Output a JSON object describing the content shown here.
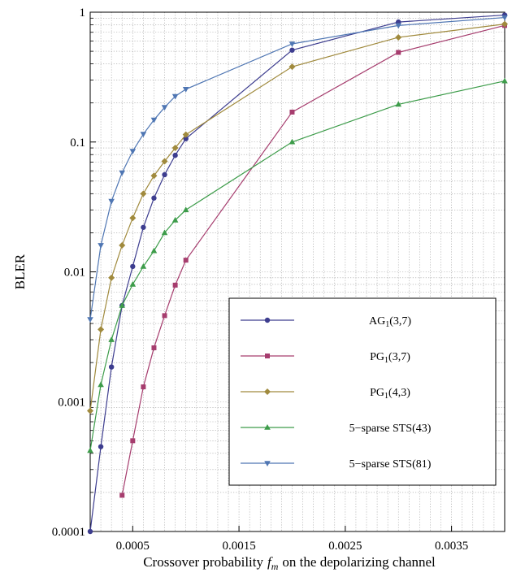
{
  "chart_data": {
    "type": "line",
    "title": "",
    "xlabel": "Crossover probability",
    "xlabel_symbol": "f",
    "xlabel_subscript": "m",
    "xlabel_suffix": "on the depolarizing channel",
    "ylabel": "BLER",
    "xlim": [
      0.0001,
      0.004
    ],
    "ylim": [
      0.0001,
      1
    ],
    "y_scale": "log",
    "grid": true,
    "legend_position": "lower-right",
    "x_ticks": [
      {
        "value": 0.0005,
        "label": "0.0005"
      },
      {
        "value": 0.0015,
        "label": "0.0015"
      },
      {
        "value": 0.0025,
        "label": "0.0025"
      },
      {
        "value": 0.0035,
        "label": "0.0035"
      }
    ],
    "y_ticks": [
      {
        "value": 0.0001,
        "label": "0.0001"
      },
      {
        "value": 0.001,
        "label": "0.001"
      },
      {
        "value": 0.01,
        "label": "0.01"
      },
      {
        "value": 0.1,
        "label": "0.1"
      },
      {
        "value": 1,
        "label": "1"
      }
    ],
    "series": [
      {
        "name": "AG",
        "subscript": "1",
        "suffix": "(3,7)",
        "color": "#3d3d8f",
        "marker": "circle",
        "x": [
          0.0001,
          0.0002,
          0.0003,
          0.0004,
          0.0005,
          0.0006,
          0.0007,
          0.0008,
          0.0009,
          0.001,
          0.002,
          0.003,
          0.004
        ],
        "y": [
          0.0001,
          0.00045,
          0.00185,
          0.0055,
          0.011,
          0.022,
          0.037,
          0.056,
          0.079,
          0.106,
          0.51,
          0.84,
          0.95
        ]
      },
      {
        "name": "PG",
        "subscript": "1",
        "suffix": "(3,7)",
        "color": "#a63d6e",
        "marker": "square",
        "x": [
          0.0004,
          0.0005,
          0.0006,
          0.0007,
          0.0008,
          0.0009,
          0.001,
          0.002,
          0.003,
          0.004
        ],
        "y": [
          0.00019,
          0.0005,
          0.0013,
          0.0026,
          0.0046,
          0.0079,
          0.0123,
          0.17,
          0.49,
          0.79
        ]
      },
      {
        "name": "PG",
        "subscript": "1",
        "suffix": "(4,3)",
        "color": "#a08a3d",
        "marker": "diamond",
        "x": [
          0.0001,
          0.0002,
          0.0003,
          0.0004,
          0.0005,
          0.0006,
          0.0007,
          0.0008,
          0.0009,
          0.001,
          0.002,
          0.003,
          0.004
        ],
        "y": [
          0.00085,
          0.0036,
          0.009,
          0.016,
          0.026,
          0.04,
          0.055,
          0.071,
          0.09,
          0.114,
          0.38,
          0.64,
          0.81
        ]
      },
      {
        "name": "5−sparse STS(43)",
        "subscript": "",
        "suffix": "",
        "color": "#3d9c4a",
        "marker": "triangle-up",
        "x": [
          0.0001,
          0.0002,
          0.0003,
          0.0004,
          0.0005,
          0.0006,
          0.0007,
          0.0008,
          0.0009,
          0.001,
          0.002,
          0.003,
          0.004
        ],
        "y": [
          0.00042,
          0.00135,
          0.003,
          0.0055,
          0.008,
          0.011,
          0.0145,
          0.02,
          0.025,
          0.03,
          0.1,
          0.195,
          0.295
        ]
      },
      {
        "name": "5−sparse STS(81)",
        "subscript": "",
        "suffix": "",
        "color": "#4f76b3",
        "marker": "triangle-down",
        "x": [
          0.0001,
          0.0002,
          0.0003,
          0.0004,
          0.0005,
          0.0006,
          0.0007,
          0.0008,
          0.0009,
          0.001,
          0.002,
          0.003,
          0.004
        ],
        "y": [
          0.0043,
          0.016,
          0.035,
          0.058,
          0.085,
          0.115,
          0.148,
          0.185,
          0.225,
          0.255,
          0.57,
          0.79,
          0.91
        ]
      }
    ]
  }
}
